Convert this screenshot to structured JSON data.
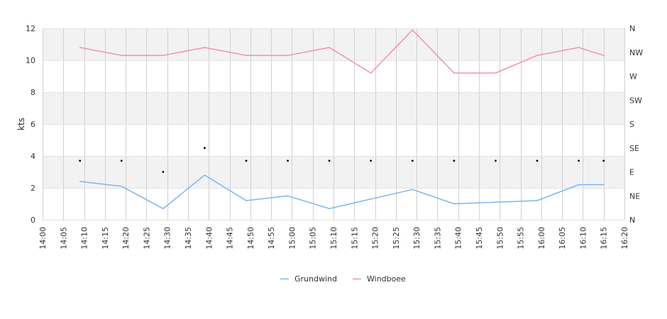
{
  "chart_data": {
    "type": "line",
    "ylabel": "kts",
    "ylim": [
      0,
      12
    ],
    "yticks": [
      "0",
      "2",
      "4",
      "6",
      "8",
      "10",
      "12"
    ],
    "right_axis_labels": [
      "N",
      "NE",
      "E",
      "SE",
      "S",
      "SW",
      "W",
      "NW",
      "N"
    ],
    "x_ticks": [
      "14:00",
      "14:05",
      "14:10",
      "14:15",
      "14:20",
      "14:25",
      "14:30",
      "14:35",
      "14:40",
      "14:45",
      "14:50",
      "14:55",
      "15:00",
      "15:05",
      "15:10",
      "15:15",
      "15:20",
      "15:25",
      "15:30",
      "15:35",
      "15:40",
      "15:45",
      "15:50",
      "15:55",
      "16:00",
      "16:05",
      "16:10",
      "16:15",
      "16:20"
    ],
    "x_range": [
      "14:00",
      "16:20"
    ],
    "times": [
      "14:09",
      "14:19",
      "14:29",
      "14:39",
      "14:49",
      "14:59",
      "15:09",
      "15:19",
      "15:29",
      "15:39",
      "15:49",
      "15:59",
      "16:09",
      "16:15"
    ],
    "series": [
      {
        "name": "Grundwind",
        "color": "#7cb5ec",
        "values": [
          2.4,
          2.1,
          0.7,
          2.8,
          1.2,
          1.5,
          0.7,
          1.3,
          1.9,
          1.0,
          1.1,
          1.2,
          2.2,
          2.2
        ]
      },
      {
        "name": "Windboee",
        "color": "#f28fbb",
        "values": [
          10.8,
          10.3,
          10.3,
          10.8,
          10.3,
          10.3,
          10.8,
          9.2,
          11.9,
          9.2,
          9.2,
          10.3,
          10.8,
          10.3
        ]
      }
    ],
    "direction_markers": [
      3.7,
      3.7,
      3.0,
      4.5,
      3.7,
      3.7,
      3.7,
      3.7,
      3.7,
      3.7,
      3.7,
      3.7,
      3.7,
      3.7
    ],
    "grid": true,
    "legend_position": "bottom-center",
    "band_color": "#f2f2f2",
    "grid_color": "#d0d0d0"
  }
}
